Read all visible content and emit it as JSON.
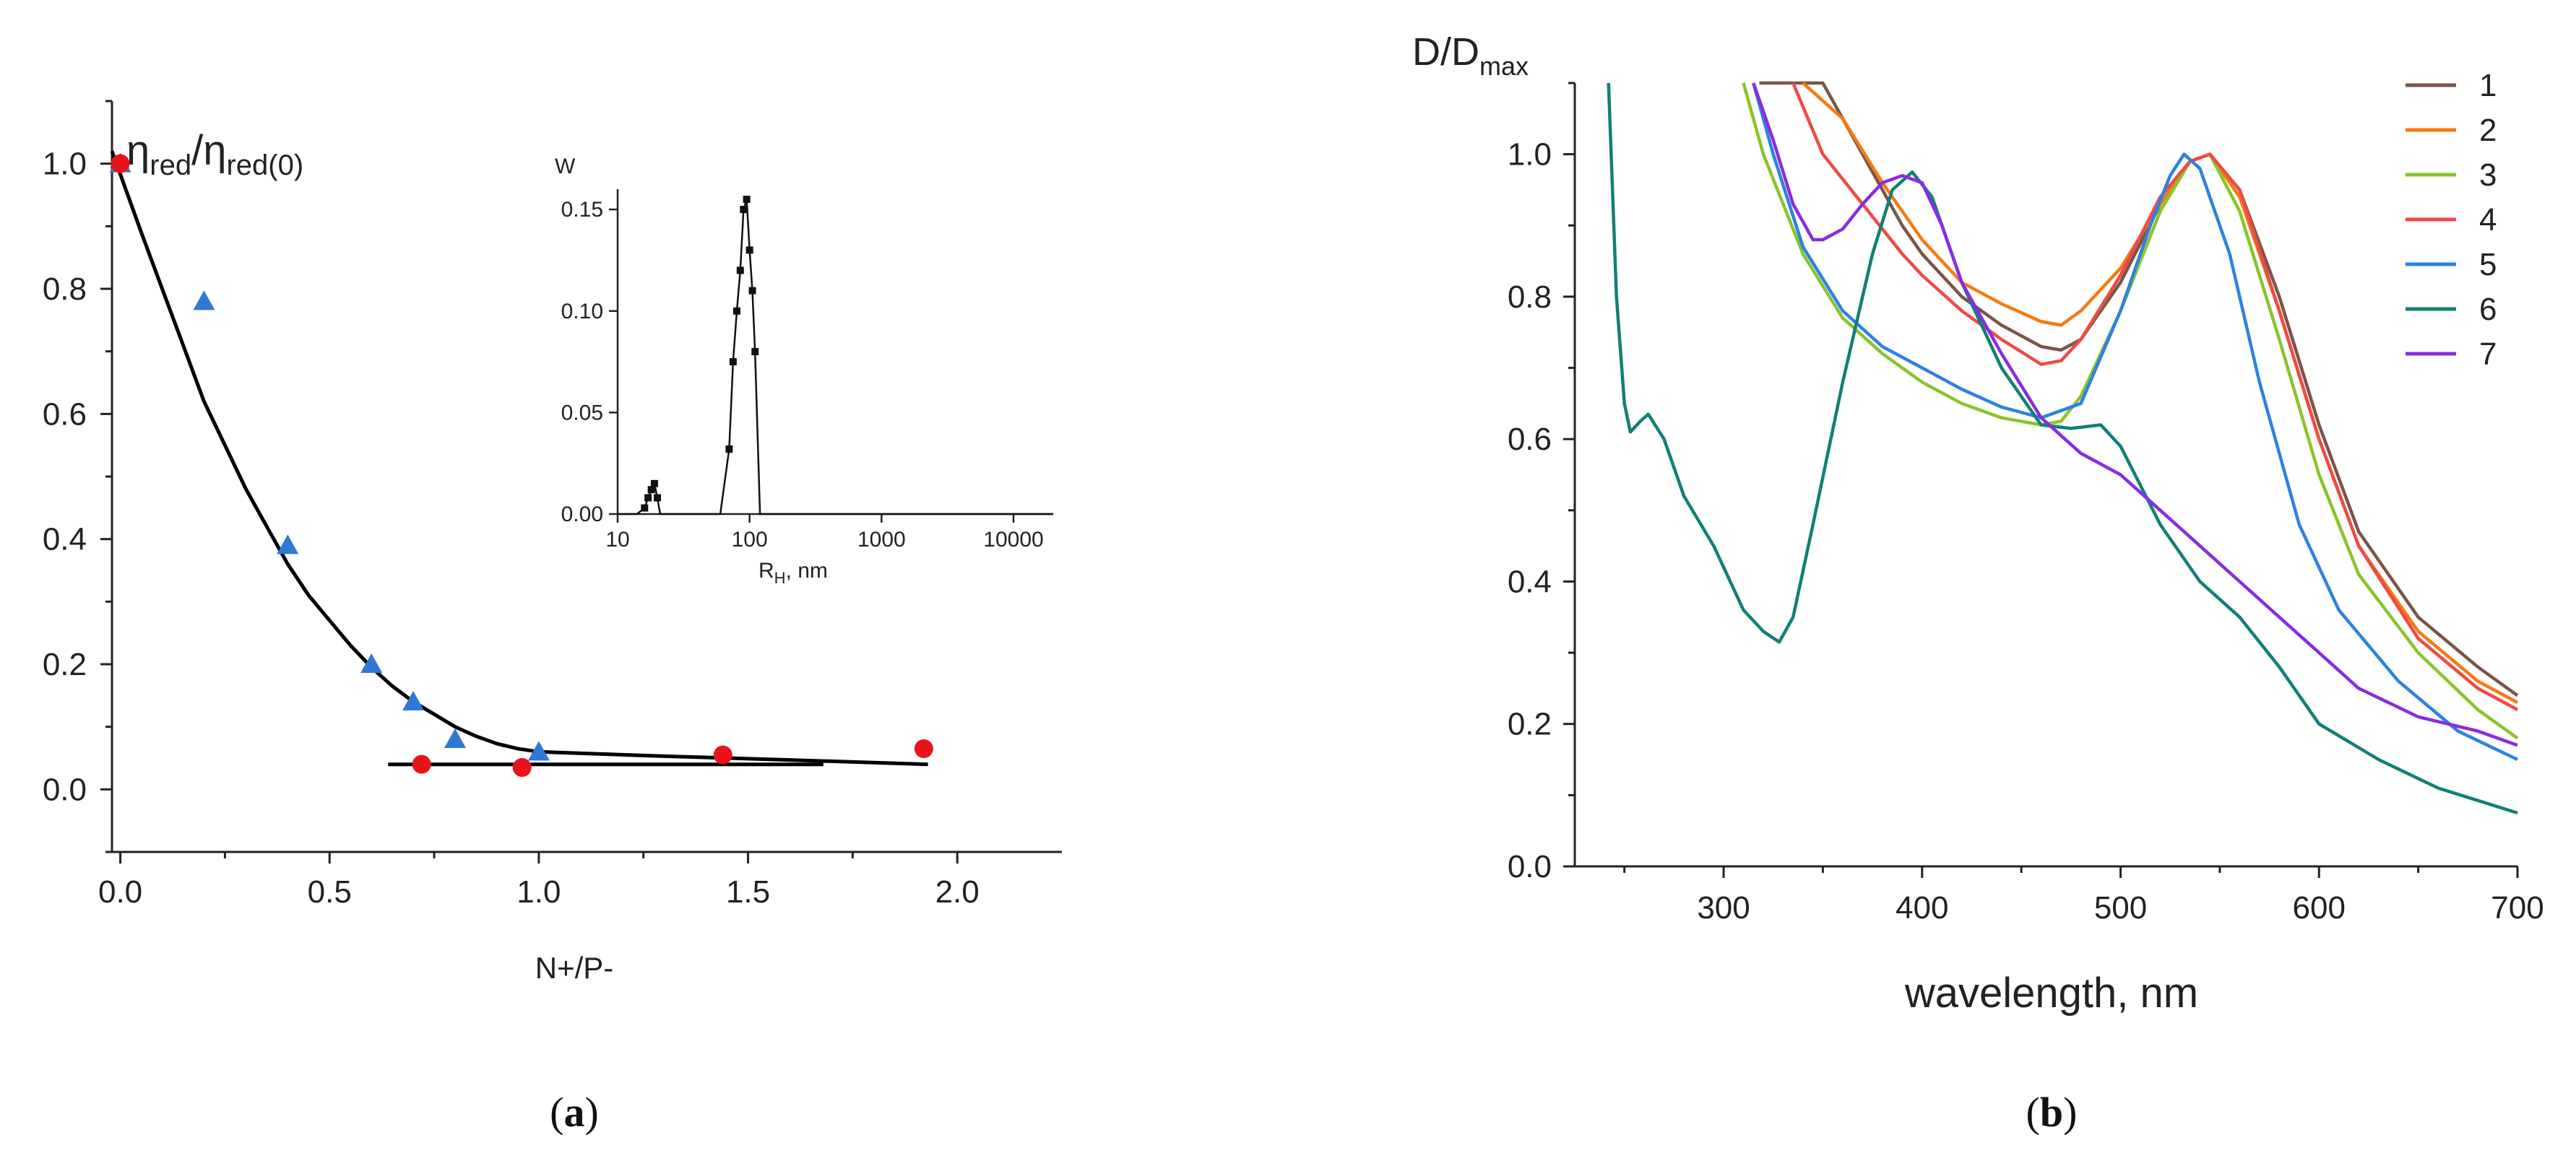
{
  "chart_data": [
    {
      "id": "a",
      "type": "scatter",
      "caption_letter": "a",
      "title_main": "η",
      "title_sub1": "red",
      "title_slash": "/",
      "title_sub2": "red(0)",
      "xlabel": "N+/P-",
      "ylabel": "η_red/η_red(0)",
      "xlim": [
        -0.02,
        2.25
      ],
      "ylim": [
        -0.1,
        1.1
      ],
      "xticks": [
        0.0,
        0.5,
        1.0,
        1.5,
        2.0
      ],
      "xtick_labels": [
        "0.0",
        "0.5",
        "1.0",
        "1.5",
        "2.0"
      ],
      "yticks": [
        0.0,
        0.2,
        0.4,
        0.6,
        0.8,
        1.0
      ],
      "ytick_labels": [
        "0.0",
        "0.2",
        "0.4",
        "0.6",
        "0.8",
        "1.0"
      ],
      "series": [
        {
          "name": "triangles",
          "marker": "triangle",
          "color": "#2f78d4",
          "x": [
            0.0,
            0.2,
            0.4,
            0.6,
            0.7,
            0.8,
            1.0
          ],
          "y": [
            1.0,
            0.78,
            0.39,
            0.2,
            0.14,
            0.08,
            0.06
          ]
        },
        {
          "name": "circles",
          "marker": "circle",
          "color": "#e8141c",
          "x": [
            0.0,
            0.72,
            0.96,
            1.44,
            1.92
          ],
          "y": [
            1.0,
            0.04,
            0.035,
            0.055,
            0.065
          ]
        },
        {
          "name": "fit",
          "marker": "line",
          "color": "#000000",
          "x": [
            -0.02,
            0.05,
            0.1,
            0.15,
            0.2,
            0.25,
            0.3,
            0.35,
            0.4,
            0.45,
            0.5,
            0.55,
            0.6,
            0.65,
            0.7,
            0.75,
            0.8,
            0.85,
            0.9,
            0.95,
            1.0,
            1.3,
            1.6,
            1.93
          ],
          "y": [
            1.02,
            0.89,
            0.8,
            0.71,
            0.62,
            0.55,
            0.48,
            0.42,
            0.36,
            0.31,
            0.27,
            0.23,
            0.195,
            0.165,
            0.14,
            0.12,
            0.1,
            0.085,
            0.073,
            0.065,
            0.06,
            0.053,
            0.047,
            0.04
          ]
        },
        {
          "name": "baseline",
          "marker": "line",
          "color": "#000000",
          "x": [
            0.64,
            1.68
          ],
          "y": [
            0.04,
            0.04
          ]
        }
      ],
      "inset": {
        "type": "line",
        "ylabel": "W",
        "xlabel_main": "R",
        "xlabel_sub": "H",
        "xlabel_rest": ", nm",
        "xscale": "log",
        "xlim": [
          10,
          20000
        ],
        "ylim": [
          0,
          0.16
        ],
        "xticks": [
          10,
          100,
          1000,
          10000
        ],
        "xtick_labels": [
          "10",
          "100",
          "1000",
          "10000"
        ],
        "yticks": [
          0,
          0.05,
          0.1,
          0.15
        ],
        "ytick_labels": [
          "0.00",
          "0.05",
          "0.10",
          "0.15"
        ],
        "x": [
          10,
          14,
          16,
          17,
          18,
          19,
          20,
          21,
          60,
          70,
          75,
          80,
          85,
          90,
          95,
          100,
          105,
          110,
          120,
          200,
          1000,
          20000
        ],
        "y": [
          0,
          0,
          0.003,
          0.008,
          0.012,
          0.015,
          0.008,
          0,
          0,
          0.032,
          0.075,
          0.1,
          0.12,
          0.15,
          0.155,
          0.13,
          0.11,
          0.08,
          0,
          0,
          0,
          0
        ]
      }
    },
    {
      "id": "b",
      "type": "line",
      "caption_letter": "b",
      "xlabel": "wavelength, nm",
      "ylabel_main": "D/D",
      "ylabel_sub": "max",
      "xlim": [
        225,
        700
      ],
      "ylim": [
        0,
        1.1
      ],
      "xticks": [
        300,
        400,
        500,
        600,
        700
      ],
      "xtick_labels": [
        "300",
        "400",
        "500",
        "600",
        "700"
      ],
      "yticks": [
        0.0,
        0.2,
        0.4,
        0.6,
        0.8,
        1.0
      ],
      "ytick_labels": [
        "0.0",
        "0.2",
        "0.4",
        "0.6",
        "0.8",
        "1.0"
      ],
      "legend_position": "top-right",
      "series": [
        {
          "name": "1",
          "color": "#7a5548",
          "x": [
            318,
            330,
            350,
            370,
            390,
            400,
            420,
            440,
            460,
            470,
            480,
            500,
            520,
            535,
            545,
            560,
            580,
            600,
            620,
            650,
            680,
            700
          ],
          "y": [
            1.1,
            1.1,
            1.1,
            1.0,
            0.9,
            0.86,
            0.8,
            0.76,
            0.73,
            0.725,
            0.74,
            0.82,
            0.93,
            0.99,
            1.0,
            0.95,
            0.8,
            0.62,
            0.47,
            0.35,
            0.28,
            0.24
          ]
        },
        {
          "name": "2",
          "color": "#f57a10",
          "x": [
            340,
            360,
            380,
            400,
            420,
            440,
            460,
            470,
            480,
            500,
            520,
            535,
            545,
            560,
            580,
            600,
            620,
            650,
            680,
            700
          ],
          "y": [
            1.1,
            1.05,
            0.96,
            0.88,
            0.82,
            0.79,
            0.765,
            0.76,
            0.78,
            0.84,
            0.93,
            0.99,
            1.0,
            0.94,
            0.78,
            0.6,
            0.45,
            0.33,
            0.26,
            0.23
          ]
        },
        {
          "name": "3",
          "color": "#8ac42a",
          "x": [
            310,
            320,
            340,
            360,
            380,
            400,
            420,
            440,
            460,
            470,
            480,
            500,
            520,
            535,
            545,
            560,
            580,
            600,
            620,
            650,
            680,
            700
          ],
          "y": [
            1.1,
            1.0,
            0.86,
            0.77,
            0.72,
            0.68,
            0.65,
            0.63,
            0.62,
            0.625,
            0.66,
            0.78,
            0.92,
            0.99,
            1.0,
            0.92,
            0.74,
            0.55,
            0.41,
            0.3,
            0.22,
            0.18
          ]
        },
        {
          "name": "4",
          "color": "#ef4a45",
          "x": [
            335,
            350,
            370,
            390,
            400,
            420,
            440,
            460,
            470,
            480,
            500,
            520,
            535,
            545,
            560,
            580,
            600,
            620,
            650,
            680,
            700
          ],
          "y": [
            1.1,
            1.0,
            0.93,
            0.86,
            0.83,
            0.78,
            0.74,
            0.705,
            0.71,
            0.74,
            0.83,
            0.94,
            0.99,
            1.0,
            0.95,
            0.78,
            0.6,
            0.45,
            0.32,
            0.25,
            0.22
          ]
        },
        {
          "name": "5",
          "color": "#2d82e0",
          "x": [
            315,
            325,
            340,
            360,
            380,
            400,
            420,
            440,
            460,
            480,
            500,
            515,
            525,
            532,
            540,
            555,
            570,
            590,
            610,
            640,
            670,
            700
          ],
          "y": [
            1.1,
            1.0,
            0.87,
            0.78,
            0.73,
            0.7,
            0.67,
            0.645,
            0.63,
            0.65,
            0.78,
            0.9,
            0.97,
            1.0,
            0.98,
            0.86,
            0.68,
            0.48,
            0.36,
            0.26,
            0.19,
            0.15
          ]
        },
        {
          "name": "6",
          "color": "#127f78",
          "x": [
            242,
            244,
            246,
            250,
            253,
            258,
            262,
            270,
            280,
            295,
            310,
            320,
            328,
            335,
            345,
            360,
            375,
            385,
            395,
            405,
            420,
            440,
            460,
            475,
            490,
            500,
            520,
            540,
            560,
            580,
            600,
            630,
            660,
            700
          ],
          "y": [
            1.1,
            0.95,
            0.8,
            0.65,
            0.61,
            0.625,
            0.635,
            0.6,
            0.52,
            0.45,
            0.36,
            0.33,
            0.315,
            0.35,
            0.48,
            0.68,
            0.86,
            0.95,
            0.975,
            0.94,
            0.82,
            0.7,
            0.62,
            0.615,
            0.62,
            0.59,
            0.48,
            0.4,
            0.35,
            0.28,
            0.2,
            0.15,
            0.11,
            0.075
          ]
        },
        {
          "name": "7",
          "color": "#8a2be2",
          "x": [
            315,
            325,
            335,
            345,
            350,
            360,
            370,
            380,
            390,
            400,
            410,
            420,
            440,
            460,
            480,
            500,
            520,
            540,
            560,
            580,
            600,
            620,
            650,
            680,
            700
          ],
          "y": [
            1.1,
            1.02,
            0.93,
            0.88,
            0.88,
            0.895,
            0.93,
            0.96,
            0.97,
            0.96,
            0.9,
            0.82,
            0.72,
            0.63,
            0.58,
            0.55,
            0.5,
            0.45,
            0.4,
            0.35,
            0.3,
            0.25,
            0.21,
            0.19,
            0.17
          ]
        }
      ]
    }
  ]
}
